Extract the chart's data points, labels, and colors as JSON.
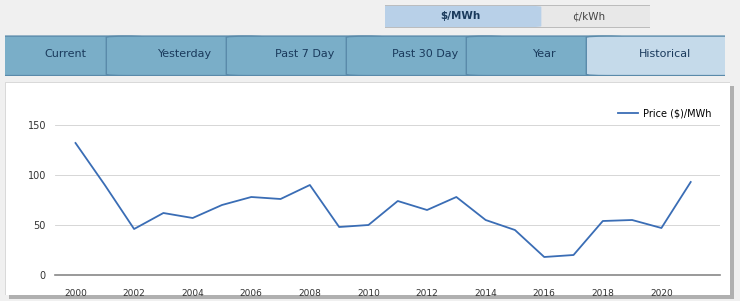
{
  "years": [
    2000,
    2001,
    2002,
    2003,
    2004,
    2005,
    2006,
    2007,
    2008,
    2009,
    2010,
    2011,
    2012,
    2013,
    2014,
    2015,
    2016,
    2017,
    2018,
    2019,
    2020,
    2021
  ],
  "prices": [
    132,
    90,
    46,
    62,
    57,
    70,
    78,
    76,
    90,
    48,
    50,
    74,
    65,
    78,
    55,
    45,
    18,
    20,
    54,
    55,
    47,
    93
  ],
  "line_color": "#3a6db5",
  "fig_bg": "#f0f0f0",
  "chart_bg": "#ffffff",
  "ylim": [
    0,
    175
  ],
  "yticks": [
    0,
    50,
    100,
    150
  ],
  "tab_labels": [
    "Current",
    "Yesterday",
    "Past 7 Day",
    "Past 30 Day",
    "Year",
    "Historical"
  ],
  "tab_active": "Historical",
  "tab_bg_active": "#c5daea",
  "tab_bg_inactive": "#7aaec8",
  "tab_text_color": "#1a3a5c",
  "toggle_mwh_label": "$/MWh",
  "toggle_kwh_label": "¢/kWh",
  "toggle_mwh_color": "#b8d0e8",
  "toggle_kwh_color": "#d0d0d0",
  "legend_label": "Price ($)/MWh",
  "grid_color": "#d0d0d0",
  "shadow_color": "#b0b0b0"
}
